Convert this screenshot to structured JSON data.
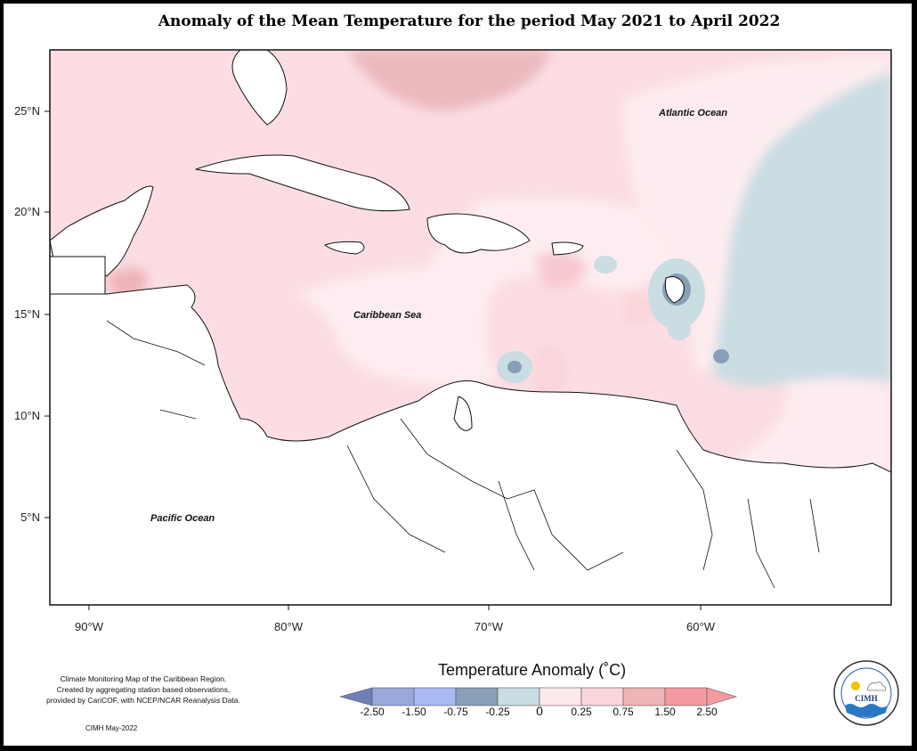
{
  "title": "Anomaly of the Mean Temperature for the period May 2021 to April 2022",
  "map": {
    "lat_labels": [
      "25°N",
      "20°N",
      "15°N",
      "10°N",
      "5°N"
    ],
    "lon_labels": [
      "90°W",
      "80°W",
      "70°W",
      "60°W"
    ],
    "regions": {
      "atlantic": "Atlantic Ocean",
      "caribbean": "Caribbean Sea",
      "pacific": "Pacific Ocean"
    },
    "background_color": "#fde2e6"
  },
  "legend": {
    "title": "Temperature Anomaly (˚C)",
    "ticks": [
      "-2.50",
      "-1.50",
      "-0.75",
      "-0.25",
      "0",
      "0.25",
      "0.75",
      "1.50",
      "2.50"
    ],
    "colors": [
      "#6f80b8",
      "#9aa8dc",
      "#a9b9f2",
      "#879fb7",
      "#c9dde3",
      "#fde9ec",
      "#fad5da",
      "#eeb4b8",
      "#f59aa0"
    ]
  },
  "caption": {
    "line1": "Climate Monitoring Map of the Caribbean Region.",
    "line2": "Created by aggregating station based observations,",
    "line3": "provided by CariCOF, with NCEP/NCAR Reanalysis Data.",
    "credit": "CIMH May-2022"
  },
  "logo": {
    "text": "CIMH"
  }
}
